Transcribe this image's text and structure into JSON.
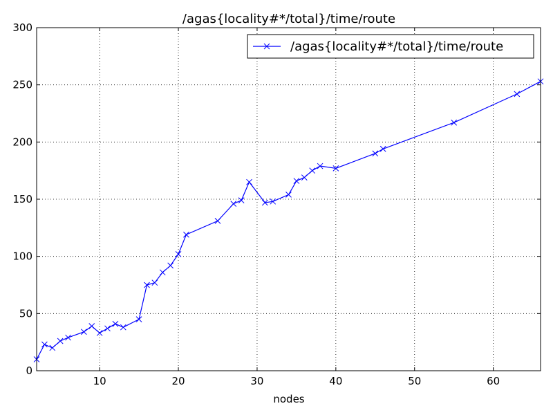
{
  "chart_data": {
    "type": "line",
    "title": "/agas{locality#*/total}/time/route",
    "xlabel": "nodes",
    "ylabel": "",
    "xlim": [
      2,
      66
    ],
    "ylim": [
      0,
      300
    ],
    "x_ticks": [
      10,
      20,
      30,
      40,
      50,
      60
    ],
    "y_ticks": [
      0,
      50,
      100,
      150,
      200,
      250,
      300
    ],
    "grid": true,
    "legend_position": "top-right",
    "series": [
      {
        "name": "/agas{locality#*/total}/time/route",
        "color": "#0000ff",
        "marker": "x",
        "x": [
          2,
          3,
          4,
          5,
          6,
          8,
          9,
          10,
          11,
          12,
          13,
          15,
          16,
          17,
          18,
          19,
          20,
          21,
          25,
          27,
          28,
          29,
          31,
          32,
          34,
          35,
          36,
          37,
          38,
          40,
          45,
          46,
          55,
          63,
          66
        ],
        "y": [
          10,
          23,
          20,
          26,
          29,
          34,
          39,
          33,
          37,
          41,
          38,
          45,
          75,
          77,
          86,
          92,
          102,
          119,
          131,
          146,
          149,
          165,
          147,
          148,
          154,
          166,
          169,
          175,
          179,
          177,
          190,
          194,
          217,
          242,
          253
        ]
      }
    ]
  }
}
